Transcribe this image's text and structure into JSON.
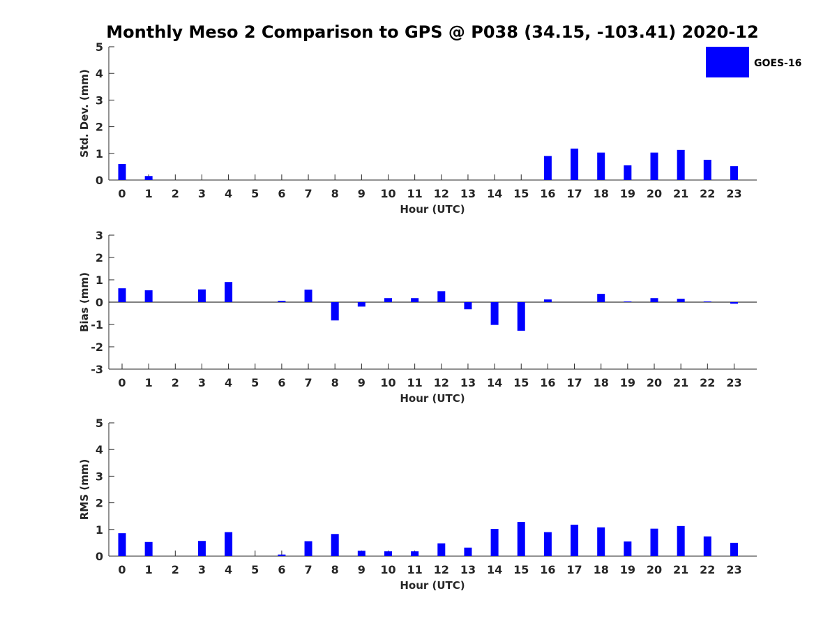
{
  "title": "Monthly Meso 2 Comparison to GPS @ P038 (34.15, -103.41) 2020-12",
  "legend": {
    "label": "GOES-16",
    "color": "#0000ff",
    "placement": "top-right"
  },
  "colors": {
    "bar": "#0000ff",
    "axis": "#262626"
  },
  "chart_data": [
    {
      "type": "bar",
      "ylabel": "Std. Dev. (mm)",
      "xlabel": "Hour (UTC)",
      "ylim": [
        0,
        5
      ],
      "yticks": [
        0,
        1,
        2,
        3,
        4,
        5
      ],
      "categories": [
        "0",
        "1",
        "2",
        "3",
        "4",
        "5",
        "6",
        "7",
        "8",
        "9",
        "10",
        "11",
        "12",
        "13",
        "14",
        "15",
        "16",
        "17",
        "18",
        "19",
        "20",
        "21",
        "22",
        "23"
      ],
      "series": [
        {
          "name": "GOES-16",
          "values": [
            0.6,
            0.15,
            0,
            0,
            0,
            0,
            0,
            0,
            0,
            0,
            0,
            0,
            0,
            0,
            0,
            0,
            0.9,
            1.18,
            1.03,
            0.55,
            1.03,
            1.13,
            0.76,
            0.52
          ]
        }
      ]
    },
    {
      "type": "bar",
      "ylabel": "Bias (mm)",
      "xlabel": "Hour (UTC)",
      "ylim": [
        -3,
        3
      ],
      "yticks": [
        -3,
        -2,
        -1,
        0,
        1,
        2,
        3
      ],
      "zero_line": true,
      "categories": [
        "0",
        "1",
        "2",
        "3",
        "4",
        "5",
        "6",
        "7",
        "8",
        "9",
        "10",
        "11",
        "12",
        "13",
        "14",
        "15",
        "16",
        "17",
        "18",
        "19",
        "20",
        "21",
        "22",
        "23"
      ],
      "series": [
        {
          "name": "GOES-16",
          "values": [
            0.62,
            0.53,
            0,
            0.57,
            0.9,
            0,
            0.06,
            0.56,
            -0.82,
            -0.2,
            0.18,
            0.18,
            0.49,
            -0.32,
            -1.02,
            -1.28,
            0.12,
            0,
            0.37,
            0.03,
            0.18,
            0.15,
            0.03,
            -0.07
          ]
        }
      ]
    },
    {
      "type": "bar",
      "ylabel": "RMS (mm)",
      "xlabel": "Hour (UTC)",
      "ylim": [
        0,
        5
      ],
      "yticks": [
        0,
        1,
        2,
        3,
        4,
        5
      ],
      "categories": [
        "0",
        "1",
        "2",
        "3",
        "4",
        "5",
        "6",
        "7",
        "8",
        "9",
        "10",
        "11",
        "12",
        "13",
        "14",
        "15",
        "16",
        "17",
        "18",
        "19",
        "20",
        "21",
        "22",
        "23"
      ],
      "series": [
        {
          "name": "GOES-16",
          "values": [
            0.86,
            0.53,
            0,
            0.57,
            0.9,
            0,
            0.06,
            0.56,
            0.83,
            0.2,
            0.18,
            0.18,
            0.48,
            0.32,
            1.02,
            1.28,
            0.9,
            1.18,
            1.08,
            0.55,
            1.03,
            1.13,
            0.74,
            0.5
          ]
        }
      ]
    }
  ]
}
